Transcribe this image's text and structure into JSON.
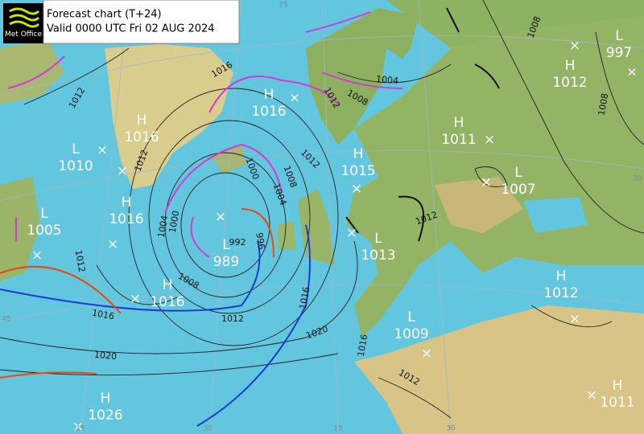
{
  "logo": "Met Office",
  "header": {
    "title": "Forecast chart (T+24)",
    "valid": "Valid 0000 UTC Fri 02 AUG 2024"
  },
  "pressure_centers": [
    {
      "type": "H",
      "value": "1016"
    },
    {
      "type": "L",
      "value": "1010"
    },
    {
      "type": "H",
      "value": "1016"
    },
    {
      "type": "L",
      "value": "1005"
    },
    {
      "type": "L",
      "value": "989"
    },
    {
      "type": "H",
      "value": "1016"
    },
    {
      "type": "H",
      "value": "1016"
    },
    {
      "type": "H",
      "value": "1015"
    },
    {
      "type": "L",
      "value": "1013"
    },
    {
      "type": "L",
      "value": "1009"
    },
    {
      "type": "H",
      "value": "1011"
    },
    {
      "type": "L",
      "value": "1007"
    },
    {
      "type": "H",
      "value": "1012"
    },
    {
      "type": "L",
      "value": "997"
    },
    {
      "type": "H",
      "value": "1012"
    },
    {
      "type": "H",
      "value": "1011"
    },
    {
      "type": "H",
      "value": "1026"
    }
  ],
  "isobar_labels": [
    "1012",
    "1016",
    "1012",
    "1000",
    "1004",
    "1000",
    "1004",
    "1008",
    "1012",
    "1012",
    "1008",
    "1004",
    "1008",
    "1008",
    "1012",
    "992",
    "996",
    "1008",
    "1012",
    "1016",
    "1020",
    "1020",
    "1016",
    "1016",
    "1012",
    "1012"
  ],
  "grid_labels": [
    "75",
    "30",
    "45",
    "15",
    "30",
    "30",
    "15"
  ]
}
